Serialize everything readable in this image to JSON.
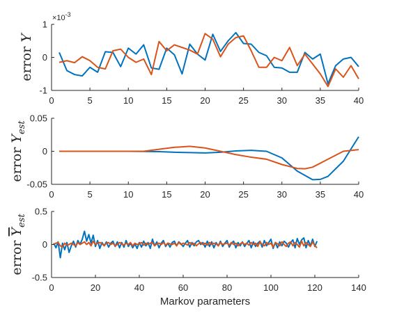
{
  "colors": {
    "series1": "#0072BD",
    "series2": "#D95319",
    "axis": "#262626"
  },
  "chart_data": [
    {
      "type": "line",
      "xlabel": "",
      "ylabel_main": "error ",
      "ylabel_var": "Y",
      "ylabel_sub": "",
      "ylabel_bar": false,
      "exponent_label": "10",
      "exponent_power": "-3",
      "xlim": [
        0,
        40
      ],
      "ylim": [
        -1,
        1
      ],
      "xticks": [
        0,
        5,
        10,
        15,
        20,
        25,
        30,
        35,
        40
      ],
      "yticks": [
        -1,
        0,
        1
      ],
      "ytick_labels": [
        "-1",
        "0",
        "1"
      ],
      "grid": false,
      "series": [
        {
          "x": [
            1,
            2,
            3,
            4,
            5,
            6,
            7,
            8,
            9,
            10,
            11,
            12,
            13,
            14,
            15,
            16,
            17,
            18,
            19,
            20,
            21,
            22,
            23,
            24,
            25,
            26,
            27,
            28,
            29,
            30,
            31,
            32,
            33,
            34,
            35,
            36,
            37,
            38,
            39,
            40
          ],
          "y": [
            0.15,
            -0.4,
            -0.52,
            -0.56,
            -0.3,
            -0.45,
            0.17,
            0.15,
            -0.28,
            0.28,
            0.1,
            0.38,
            -0.32,
            -0.36,
            0.28,
            0.08,
            -0.5,
            0.4,
            0.1,
            -0.08,
            0.7,
            0.18,
            0.5,
            0.75,
            0.42,
            0.4,
            0.15,
            0.05,
            -0.3,
            -0.32,
            -0.45,
            -0.45,
            0.15,
            -0.05,
            0.1,
            -0.8,
            -0.25,
            -0.05,
            0.0,
            -0.28
          ]
        },
        {
          "x": [
            1,
            2,
            3,
            4,
            5,
            6,
            7,
            8,
            9,
            10,
            11,
            12,
            13,
            14,
            15,
            16,
            17,
            18,
            19,
            20,
            21,
            22,
            23,
            24,
            25,
            26,
            27,
            28,
            29,
            30,
            31,
            32,
            33,
            34,
            35,
            36,
            37,
            38,
            39,
            40
          ],
          "y": [
            -0.15,
            -0.1,
            -0.16,
            0.02,
            -0.1,
            -0.3,
            -0.35,
            0.2,
            0.25,
            0.0,
            -0.15,
            -0.05,
            -0.52,
            0.48,
            0.2,
            0.38,
            0.3,
            0.22,
            0.1,
            0.72,
            0.55,
            0.02,
            0.4,
            0.6,
            0.65,
            0.2,
            -0.3,
            -0.3,
            0.0,
            -0.1,
            0.3,
            -0.25,
            0.1,
            -0.2,
            -0.5,
            -0.88,
            -0.35,
            -0.6,
            -0.25,
            -0.65
          ]
        }
      ]
    },
    {
      "type": "line",
      "xlabel": "",
      "ylabel_main": "error ",
      "ylabel_var": "Y",
      "ylabel_sub": "est",
      "ylabel_bar": false,
      "xlim": [
        0,
        40
      ],
      "ylim": [
        -0.05,
        0.05
      ],
      "xticks": [
        0,
        5,
        10,
        15,
        20,
        25,
        30,
        35,
        40
      ],
      "yticks": [
        -0.05,
        0,
        0.05
      ],
      "ytick_labels": [
        "-0.05",
        "0",
        "0.05"
      ],
      "grid": false,
      "series": [
        {
          "x": [
            1,
            5,
            10,
            14,
            16,
            18,
            20,
            22,
            24,
            26,
            28,
            30,
            32,
            34,
            35,
            36,
            38,
            40
          ],
          "y": [
            0,
            0,
            0,
            -0.0005,
            -0.0015,
            -0.002,
            -0.0025,
            -0.0015,
            0.0005,
            0.0015,
            0.0,
            -0.01,
            -0.03,
            -0.043,
            -0.0425,
            -0.038,
            -0.015,
            0.022
          ]
        },
        {
          "x": [
            1,
            5,
            10,
            12,
            14,
            16,
            18,
            20,
            22,
            24,
            26,
            28,
            30,
            32,
            33,
            34,
            36,
            38,
            40
          ],
          "y": [
            0,
            0,
            0,
            0,
            0.003,
            0.006,
            0.0075,
            0.005,
            0.0,
            -0.005,
            -0.009,
            -0.012,
            -0.02,
            -0.026,
            -0.0265,
            -0.024,
            -0.012,
            0.0,
            0.0025
          ]
        }
      ]
    },
    {
      "type": "line",
      "xlabel": "Markov parameters",
      "ylabel_main": "error ",
      "ylabel_var": "Y",
      "ylabel_sub": "est",
      "ylabel_bar": true,
      "xlim": [
        0,
        140
      ],
      "ylim": [
        -0.5,
        0.5
      ],
      "xticks": [
        0,
        20,
        40,
        60,
        80,
        100,
        120,
        140
      ],
      "yticks": [
        -0.5,
        0,
        0.5
      ],
      "ytick_labels": [
        "-0.5",
        "0",
        "0.5"
      ],
      "grid": false,
      "series": [
        {
          "x": [
            1,
            2,
            3,
            4,
            5,
            6,
            7,
            8,
            9,
            10,
            11,
            12,
            13,
            14,
            15,
            16,
            17,
            18,
            19,
            20,
            21,
            22,
            23,
            24,
            25,
            26,
            27,
            28,
            29,
            30,
            31,
            32,
            33,
            34,
            35,
            36,
            37,
            38,
            39,
            40,
            41,
            42,
            43,
            44,
            45,
            46,
            47,
            48,
            49,
            50,
            51,
            52,
            53,
            54,
            55,
            56,
            57,
            58,
            59,
            60,
            61,
            62,
            63,
            64,
            65,
            66,
            67,
            68,
            69,
            70,
            71,
            72,
            73,
            74,
            75,
            76,
            77,
            78,
            79,
            80,
            81,
            82,
            83,
            84,
            85,
            86,
            87,
            88,
            89,
            90,
            91,
            92,
            93,
            94,
            95,
            96,
            97,
            98,
            99,
            100,
            101,
            102,
            103,
            104,
            105,
            106,
            107,
            108,
            109,
            110,
            111,
            112,
            113,
            114,
            115,
            116,
            117,
            118,
            119,
            120,
            121
          ],
          "y": [
            0.02,
            -0.05,
            0.04,
            -0.2,
            0.02,
            -0.08,
            0.03,
            -0.12,
            -0.02,
            0.05,
            -0.04,
            0.06,
            0.0,
            0.08,
            0.2,
            0.05,
            0.15,
            0.02,
            0.14,
            -0.03,
            0.06,
            -0.06,
            0.03,
            -0.02,
            0.04,
            -0.04,
            0.02,
            0.05,
            -0.03,
            0.04,
            -0.05,
            0.03,
            -0.04,
            0.06,
            -0.03,
            0.02,
            -0.05,
            0.01,
            -0.06,
            0.03,
            -0.04,
            0.05,
            -0.02,
            0.03,
            -0.06,
            0.08,
            -0.02,
            0.04,
            -0.05,
            0.02,
            0.06,
            -0.03,
            0.02,
            -0.04,
            0.03,
            0.05,
            -0.02,
            0.04,
            0.01,
            -0.03,
            0.02,
            0.06,
            -0.04,
            0.03,
            -0.02,
            0.04,
            0.06,
            0.0,
            0.03,
            -0.04,
            0.05,
            -0.03,
            0.04,
            -0.05,
            0.03,
            -0.02,
            0.05,
            -0.03,
            0.02,
            0.06,
            -0.04,
            0.02,
            0.05,
            -0.05,
            0.03,
            -0.02,
            0.04,
            -0.03,
            0.02,
            0.06,
            -0.05,
            0.04,
            -0.03,
            0.02,
            0.05,
            -0.04,
            0.06,
            -0.02,
            0.03,
            0.08,
            -0.06,
            0.03,
            -0.05,
            0.04,
            -0.02,
            0.05,
            0.02,
            -0.04,
            0.03,
            0.07,
            -0.05,
            0.09,
            0.0,
            0.07,
            0.1,
            -0.05,
            0.06,
            -0.02,
            0.08,
            -0.03,
            0.05
          ]
        },
        {
          "x": [
            1,
            2,
            3,
            4,
            5,
            6,
            7,
            8,
            9,
            10,
            11,
            12,
            13,
            14,
            15,
            16,
            17,
            18,
            19,
            20,
            21,
            22,
            23,
            24,
            25,
            26,
            27,
            28,
            29,
            30,
            31,
            32,
            33,
            34,
            35,
            36,
            37,
            38,
            39,
            40,
            41,
            42,
            43,
            44,
            45,
            46,
            47,
            48,
            49,
            50,
            51,
            52,
            53,
            54,
            55,
            56,
            57,
            58,
            59,
            60,
            61,
            62,
            63,
            64,
            65,
            66,
            67,
            68,
            69,
            70,
            71,
            72,
            73,
            74,
            75,
            76,
            77,
            78,
            79,
            80,
            81,
            82,
            83,
            84,
            85,
            86,
            87,
            88,
            89,
            90,
            91,
            92,
            93,
            94,
            95,
            96,
            97,
            98,
            99,
            100,
            101,
            102,
            103,
            104,
            105,
            106,
            107,
            108,
            109,
            110,
            111,
            112,
            113,
            114,
            115,
            116,
            117,
            118,
            119,
            120,
            121
          ],
          "y": [
            0.0,
            0.02,
            0.03,
            -0.02,
            -0.04,
            0.02,
            -0.01,
            0.0,
            0.02,
            0.0,
            -0.02,
            0.03,
            0.0,
            0.02,
            0.04,
            0.0,
            0.03,
            -0.02,
            0.05,
            0.0,
            0.02,
            0.03,
            0.01,
            -0.02,
            0.02,
            0.03,
            0.0,
            0.02,
            -0.02,
            0.0,
            0.03,
            0.01,
            -0.01,
            0.02,
            0.0,
            0.03,
            -0.02,
            0.02,
            0.0,
            0.01,
            0.03,
            -0.01,
            0.02,
            0.0,
            0.02,
            0.03,
            -0.02,
            0.01,
            0.02,
            0.0,
            0.03,
            -0.01,
            0.02,
            0.01,
            0.0,
            0.02,
            -0.02,
            0.03,
            0.0,
            0.02,
            0.01,
            -0.01,
            0.03,
            0.0,
            0.02,
            -0.02,
            0.01,
            0.03,
            0.0,
            0.02,
            -0.01,
            0.03,
            0.0,
            0.02,
            0.01,
            -0.02,
            0.03,
            0.0,
            0.01,
            0.02,
            -0.01,
            0.03,
            0.0,
            0.02,
            -0.02,
            0.01,
            0.03,
            0.0,
            0.02,
            -0.01,
            0.03,
            0.0,
            0.02,
            -0.03,
            0.04,
            0.0,
            -0.02,
            0.03,
            0.0,
            0.02,
            -0.04,
            0.03,
            0.01,
            -0.02,
            0.04,
            0.0,
            -0.03,
            0.02,
            0.04,
            -0.02,
            0.03,
            0.0,
            -0.04,
            0.05,
            -0.02,
            0.03,
            0.0,
            -0.03,
            0.04,
            -0.02,
            -0.05
          ]
        }
      ]
    }
  ]
}
